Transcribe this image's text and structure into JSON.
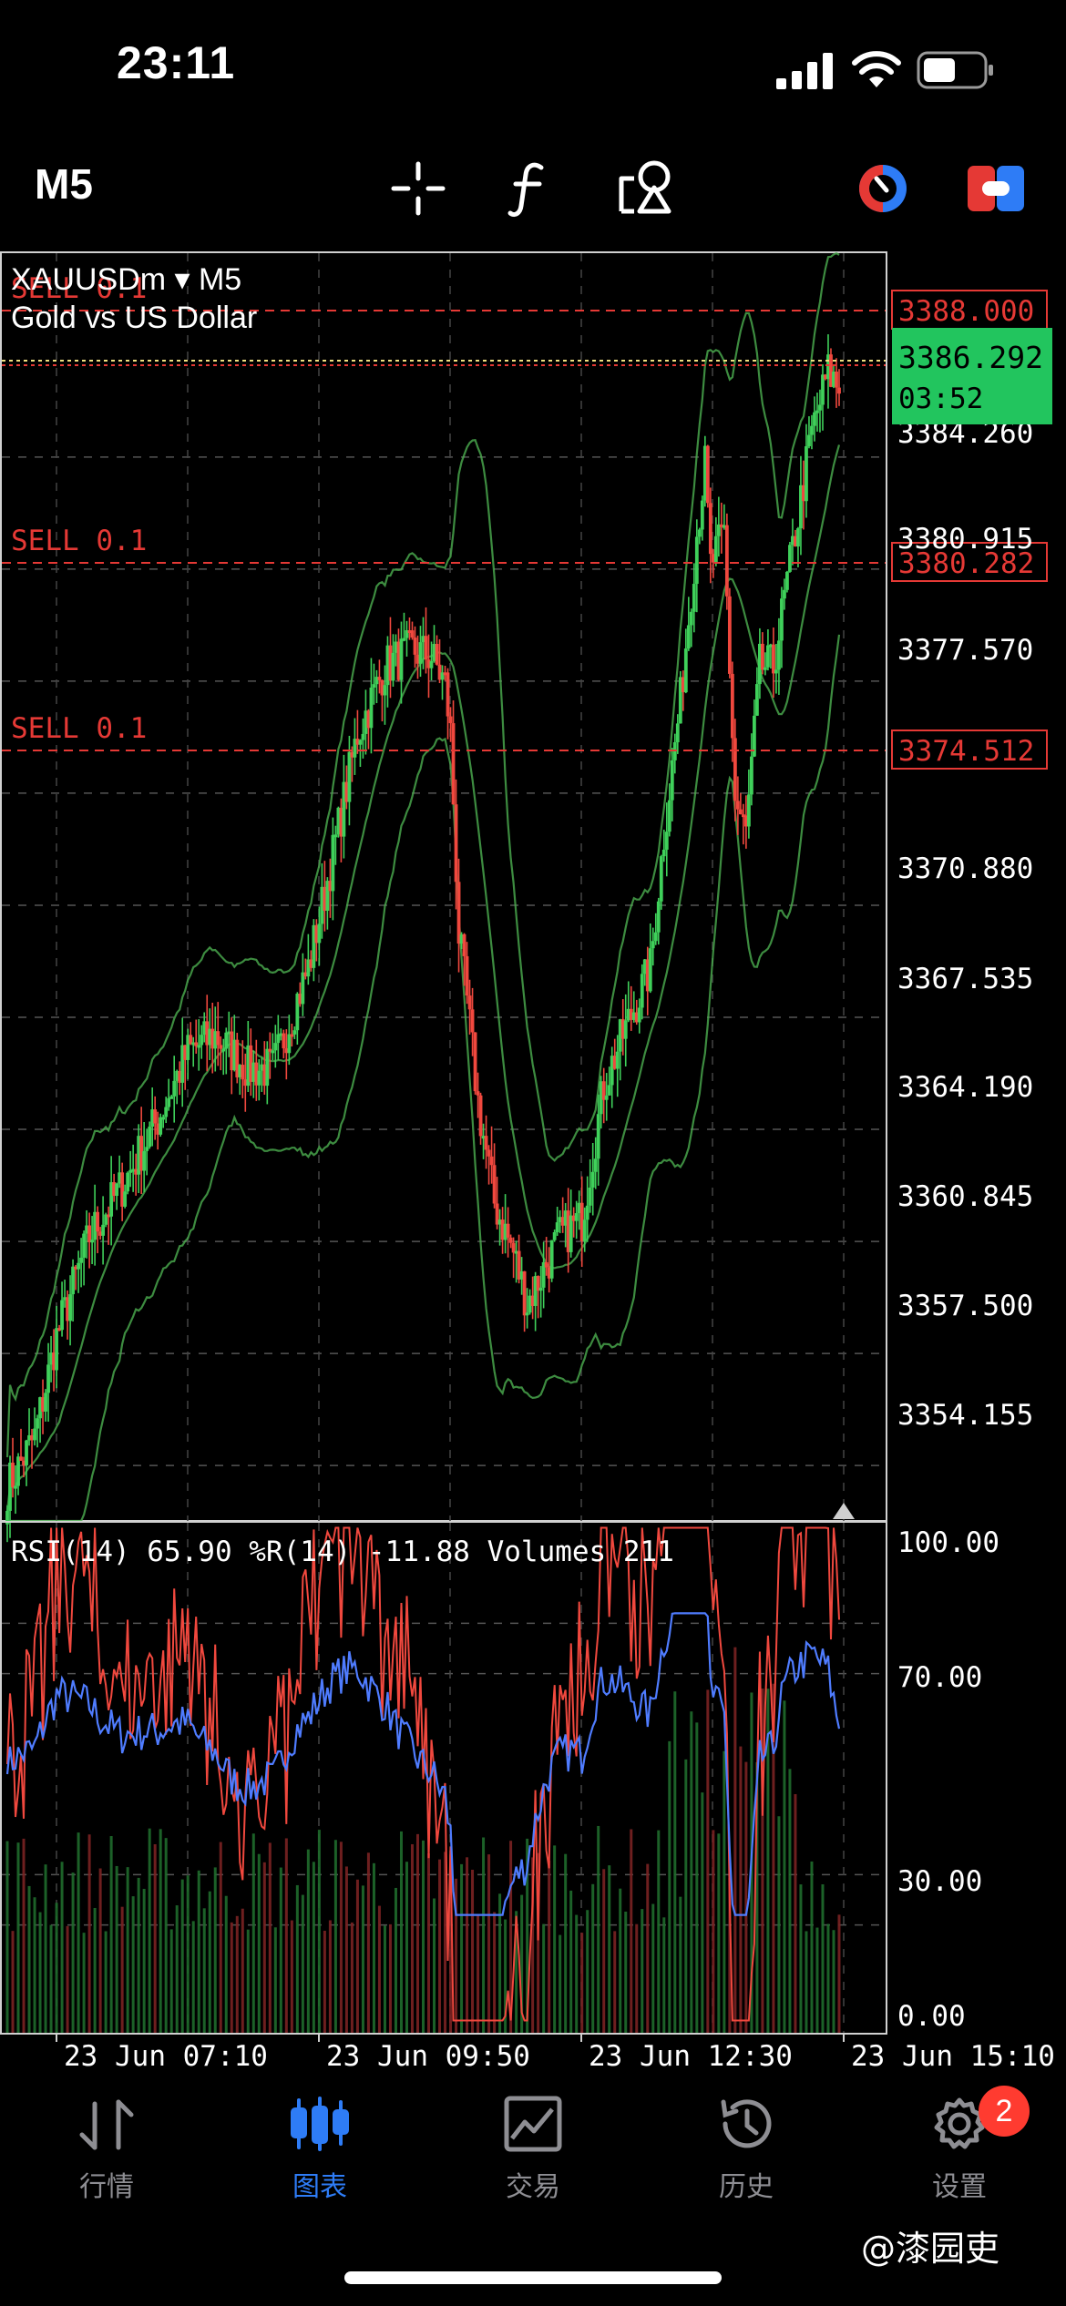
{
  "status_bar": {
    "time": "23:11"
  },
  "toolbar": {
    "timeframe": "M5",
    "icons": [
      "crosshair-icon",
      "function-icon",
      "objects-icon",
      "chart-style-icon",
      "trade-toggle-icon"
    ]
  },
  "chart": {
    "symbol": "XAUUSDm",
    "symbol_arrow": "▾",
    "timeframe": "M5",
    "description": "Gold vs US Dollar",
    "orders": [
      {
        "label": "SELL 0.1",
        "price": "3388.000"
      },
      {
        "label": "SELL 0.1",
        "price": "3380.282"
      },
      {
        "label": "SELL 0.1",
        "price": "3374.512"
      }
    ],
    "current_price": "3386.292",
    "countdown": "03:52",
    "price_axis": [
      "3384.260",
      "3380.915",
      "3377.570",
      "3370.880",
      "3367.535",
      "3364.190",
      "3360.845",
      "3357.500",
      "3354.155"
    ],
    "time_axis": [
      "23 Jun 07:10",
      "23 Jun 09:50",
      "23 Jun 12:30",
      "23 Jun 15:10"
    ],
    "colors": {
      "bull": "#3fd05a",
      "bear": "#f0483e",
      "band": "#4caf50",
      "order": "#e53935",
      "current": "#22c55e",
      "rsi": "#4f7cff",
      "wpr": "#f0483e"
    }
  },
  "indicators": {
    "legend": "RSI(14) 65.90 %R(14) -11.88 Volumes 211",
    "axis": [
      "100.00",
      "70.00",
      "30.00",
      "0.00"
    ]
  },
  "nav": {
    "items": [
      {
        "label": "行情",
        "icon": "quotes-icon"
      },
      {
        "label": "图表",
        "icon": "chart-icon"
      },
      {
        "label": "交易",
        "icon": "trade-icon"
      },
      {
        "label": "历史",
        "icon": "history-icon"
      },
      {
        "label": "设置",
        "icon": "settings-icon"
      }
    ],
    "active": 1,
    "settings_badge": "2"
  },
  "watermark": "@漆园吏"
}
